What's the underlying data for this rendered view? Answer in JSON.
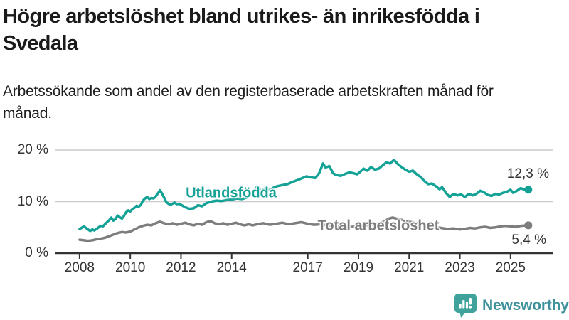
{
  "header": {
    "title": "Högre arbetslöshet bland utrikes- än inrikesfödda i Svedala",
    "subtitle": "Arbetssökande som andel av den registerbaserade arbetskraften månad för månad."
  },
  "branding": {
    "logo_text": "Newsworthy",
    "logo_icon": "bar-chart-speech-bubble-icon",
    "logo_text_color": "#3F929B",
    "logo_icon_color": "#3FA39B"
  },
  "colors": {
    "accent_teal": "#14A296",
    "line_gray": "#7D7D7D",
    "gridline": "#CCCCCC",
    "axis": "#333333",
    "text": "#1A1A1A"
  },
  "chart_data": {
    "type": "line",
    "title": "Högre arbetslöshet bland utrikes- än inrikesfödda i Svedala",
    "subtitle": "Arbetssökande som andel av den registerbaserade arbetskraften månad för månad.",
    "xlabel": "",
    "ylabel": "",
    "grid": "horizontal",
    "legend_position": "inline-labels",
    "xlim": [
      2007.05,
      2026.66
    ],
    "ylim": [
      0,
      20
    ],
    "yticks": [
      {
        "value": 0,
        "label": "0 %"
      },
      {
        "value": 10,
        "label": "10 %"
      },
      {
        "value": 20,
        "label": "20 %"
      }
    ],
    "xticks": [
      {
        "value": 2008,
        "label": "2008"
      },
      {
        "value": 2010,
        "label": "2010"
      },
      {
        "value": 2012,
        "label": "2012"
      },
      {
        "value": 2014,
        "label": "2014"
      },
      {
        "value": 2017,
        "label": "2017"
      },
      {
        "value": 2019,
        "label": "2019"
      },
      {
        "value": 2021,
        "label": "2021"
      },
      {
        "value": 2023,
        "label": "2023"
      },
      {
        "value": 2025,
        "label": "2025"
      }
    ],
    "series": [
      {
        "name": "Utlandsfödda",
        "color": "#14A296",
        "end_value": 12.3,
        "end_label": "12,3 %",
        "points": [
          [
            2008.0,
            4.7
          ],
          [
            2008.08,
            4.9
          ],
          [
            2008.17,
            5.2
          ],
          [
            2008.25,
            4.9
          ],
          [
            2008.33,
            4.6
          ],
          [
            2008.42,
            4.3
          ],
          [
            2008.5,
            4.6
          ],
          [
            2008.58,
            4.4
          ],
          [
            2008.67,
            4.7
          ],
          [
            2008.75,
            5.0
          ],
          [
            2008.83,
            5.3
          ],
          [
            2008.92,
            5.2
          ],
          [
            2009.0,
            5.6
          ],
          [
            2009.08,
            6.0
          ],
          [
            2009.17,
            6.4
          ],
          [
            2009.25,
            6.9
          ],
          [
            2009.33,
            6.3
          ],
          [
            2009.42,
            6.6
          ],
          [
            2009.5,
            7.3
          ],
          [
            2009.58,
            7.0
          ],
          [
            2009.67,
            6.7
          ],
          [
            2009.75,
            7.2
          ],
          [
            2009.83,
            7.9
          ],
          [
            2009.92,
            8.3
          ],
          [
            2010.0,
            8.1
          ],
          [
            2010.08,
            8.5
          ],
          [
            2010.17,
            8.8
          ],
          [
            2010.25,
            9.2
          ],
          [
            2010.33,
            9.0
          ],
          [
            2010.42,
            9.4
          ],
          [
            2010.5,
            10.2
          ],
          [
            2010.58,
            10.6
          ],
          [
            2010.67,
            10.9
          ],
          [
            2010.75,
            10.5
          ],
          [
            2010.83,
            10.7
          ],
          [
            2010.92,
            10.6
          ],
          [
            2011.0,
            11.0
          ],
          [
            2011.08,
            11.5
          ],
          [
            2011.17,
            12.2
          ],
          [
            2011.25,
            11.6
          ],
          [
            2011.33,
            10.8
          ],
          [
            2011.42,
            9.9
          ],
          [
            2011.5,
            9.6
          ],
          [
            2011.58,
            9.4
          ],
          [
            2011.67,
            9.6
          ],
          [
            2011.75,
            9.8
          ],
          [
            2011.83,
            9.5
          ],
          [
            2011.92,
            9.6
          ],
          [
            2012.0,
            9.4
          ],
          [
            2012.17,
            8.9
          ],
          [
            2012.33,
            8.6
          ],
          [
            2012.5,
            8.7
          ],
          [
            2012.67,
            9.3
          ],
          [
            2012.83,
            9.1
          ],
          [
            2013.0,
            9.7
          ],
          [
            2013.2,
            10.0
          ],
          [
            2013.4,
            10.2
          ],
          [
            2013.6,
            10.1
          ],
          [
            2013.8,
            10.3
          ],
          [
            2014.0,
            10.4
          ],
          [
            2014.2,
            10.6
          ],
          [
            2014.4,
            10.5
          ],
          [
            2014.6,
            10.8
          ],
          [
            2014.8,
            11.4
          ],
          [
            2015.0,
            12.9
          ],
          [
            2015.15,
            12.1
          ],
          [
            2015.3,
            12.5
          ],
          [
            2015.5,
            12.2
          ],
          [
            2015.65,
            12.7
          ],
          [
            2015.8,
            13.0
          ],
          [
            2016.0,
            13.2
          ],
          [
            2016.2,
            13.4
          ],
          [
            2016.4,
            13.8
          ],
          [
            2016.6,
            14.2
          ],
          [
            2016.8,
            14.6
          ],
          [
            2016.95,
            14.9
          ],
          [
            2017.1,
            14.7
          ],
          [
            2017.3,
            14.6
          ],
          [
            2017.45,
            15.5
          ],
          [
            2017.6,
            17.4
          ],
          [
            2017.7,
            16.6
          ],
          [
            2017.85,
            16.9
          ],
          [
            2018.0,
            15.5
          ],
          [
            2018.1,
            15.2
          ],
          [
            2018.3,
            15.0
          ],
          [
            2018.5,
            15.4
          ],
          [
            2018.65,
            15.7
          ],
          [
            2018.8,
            15.5
          ],
          [
            2018.95,
            15.3
          ],
          [
            2019.1,
            15.9
          ],
          [
            2019.2,
            16.4
          ],
          [
            2019.35,
            16.0
          ],
          [
            2019.5,
            16.7
          ],
          [
            2019.65,
            16.2
          ],
          [
            2019.8,
            16.4
          ],
          [
            2019.95,
            17.0
          ],
          [
            2020.1,
            17.6
          ],
          [
            2020.25,
            17.4
          ],
          [
            2020.4,
            18.1
          ],
          [
            2020.55,
            17.3
          ],
          [
            2020.7,
            16.7
          ],
          [
            2020.85,
            16.2
          ],
          [
            2021.0,
            15.8
          ],
          [
            2021.15,
            16.0
          ],
          [
            2021.3,
            15.3
          ],
          [
            2021.45,
            14.8
          ],
          [
            2021.6,
            14.0
          ],
          [
            2021.75,
            13.4
          ],
          [
            2021.9,
            13.5
          ],
          [
            2022.05,
            13.0
          ],
          [
            2022.2,
            12.4
          ],
          [
            2022.3,
            12.8
          ],
          [
            2022.45,
            11.7
          ],
          [
            2022.6,
            10.9
          ],
          [
            2022.75,
            11.5
          ],
          [
            2022.9,
            11.2
          ],
          [
            2023.05,
            11.4
          ],
          [
            2023.2,
            10.9
          ],
          [
            2023.35,
            11.5
          ],
          [
            2023.5,
            11.2
          ],
          [
            2023.65,
            11.5
          ],
          [
            2023.8,
            12.1
          ],
          [
            2023.95,
            11.8
          ],
          [
            2024.1,
            11.3
          ],
          [
            2024.25,
            11.1
          ],
          [
            2024.4,
            11.5
          ],
          [
            2024.55,
            11.4
          ],
          [
            2024.7,
            11.7
          ],
          [
            2024.85,
            11.9
          ],
          [
            2025.0,
            12.3
          ],
          [
            2025.1,
            11.7
          ],
          [
            2025.25,
            12.1
          ],
          [
            2025.4,
            12.6
          ],
          [
            2025.55,
            12.3
          ],
          [
            2025.7,
            12.3
          ]
        ]
      },
      {
        "name": "Total arbetslöshet",
        "color": "#7D7D7D",
        "end_value": 5.4,
        "end_label": "5,4 %",
        "points": [
          [
            2008.0,
            2.6
          ],
          [
            2008.17,
            2.5
          ],
          [
            2008.33,
            2.4
          ],
          [
            2008.5,
            2.5
          ],
          [
            2008.67,
            2.7
          ],
          [
            2008.83,
            2.8
          ],
          [
            2009.0,
            3.0
          ],
          [
            2009.17,
            3.3
          ],
          [
            2009.33,
            3.6
          ],
          [
            2009.5,
            3.9
          ],
          [
            2009.67,
            4.1
          ],
          [
            2009.83,
            4.0
          ],
          [
            2010.0,
            4.2
          ],
          [
            2010.17,
            4.6
          ],
          [
            2010.33,
            5.0
          ],
          [
            2010.5,
            5.3
          ],
          [
            2010.67,
            5.5
          ],
          [
            2010.83,
            5.4
          ],
          [
            2011.0,
            5.8
          ],
          [
            2011.17,
            6.1
          ],
          [
            2011.33,
            5.8
          ],
          [
            2011.5,
            5.6
          ],
          [
            2011.67,
            5.8
          ],
          [
            2011.83,
            5.5
          ],
          [
            2012.0,
            5.7
          ],
          [
            2012.17,
            5.9
          ],
          [
            2012.33,
            5.6
          ],
          [
            2012.5,
            5.4
          ],
          [
            2012.67,
            5.7
          ],
          [
            2012.83,
            5.5
          ],
          [
            2013.0,
            6.0
          ],
          [
            2013.17,
            6.2
          ],
          [
            2013.33,
            5.8
          ],
          [
            2013.5,
            5.6
          ],
          [
            2013.67,
            5.8
          ],
          [
            2013.83,
            5.5
          ],
          [
            2014.0,
            5.7
          ],
          [
            2014.17,
            5.9
          ],
          [
            2014.33,
            5.6
          ],
          [
            2014.5,
            5.4
          ],
          [
            2014.67,
            5.6
          ],
          [
            2014.83,
            5.4
          ],
          [
            2015.0,
            5.6
          ],
          [
            2015.25,
            5.8
          ],
          [
            2015.5,
            5.5
          ],
          [
            2015.75,
            5.7
          ],
          [
            2016.0,
            5.9
          ],
          [
            2016.25,
            5.6
          ],
          [
            2016.5,
            5.8
          ],
          [
            2016.75,
            6.0
          ],
          [
            2017.0,
            5.7
          ],
          [
            2017.25,
            5.5
          ],
          [
            2017.5,
            5.6
          ],
          [
            2017.75,
            5.4
          ],
          [
            2018.0,
            5.3
          ],
          [
            2018.25,
            5.1
          ],
          [
            2018.5,
            5.2
          ],
          [
            2018.75,
            5.1
          ],
          [
            2019.0,
            5.3
          ],
          [
            2019.25,
            5.4
          ],
          [
            2019.5,
            5.5
          ],
          [
            2019.75,
            5.7
          ],
          [
            2020.0,
            6.1
          ],
          [
            2020.2,
            6.7
          ],
          [
            2020.35,
            6.9
          ],
          [
            2020.5,
            6.7
          ],
          [
            2020.75,
            6.4
          ],
          [
            2021.0,
            6.1
          ],
          [
            2021.25,
            5.9
          ],
          [
            2021.5,
            5.6
          ],
          [
            2021.75,
            5.3
          ],
          [
            2022.0,
            5.1
          ],
          [
            2022.25,
            4.9
          ],
          [
            2022.5,
            4.7
          ],
          [
            2022.75,
            4.8
          ],
          [
            2023.0,
            4.6
          ],
          [
            2023.2,
            4.7
          ],
          [
            2023.4,
            4.9
          ],
          [
            2023.6,
            4.8
          ],
          [
            2023.8,
            5.0
          ],
          [
            2024.0,
            5.1
          ],
          [
            2024.2,
            4.9
          ],
          [
            2024.4,
            5.0
          ],
          [
            2024.6,
            5.2
          ],
          [
            2024.8,
            5.3
          ],
          [
            2025.0,
            5.2
          ],
          [
            2025.2,
            5.1
          ],
          [
            2025.4,
            5.3
          ],
          [
            2025.7,
            5.4
          ]
        ]
      }
    ]
  }
}
